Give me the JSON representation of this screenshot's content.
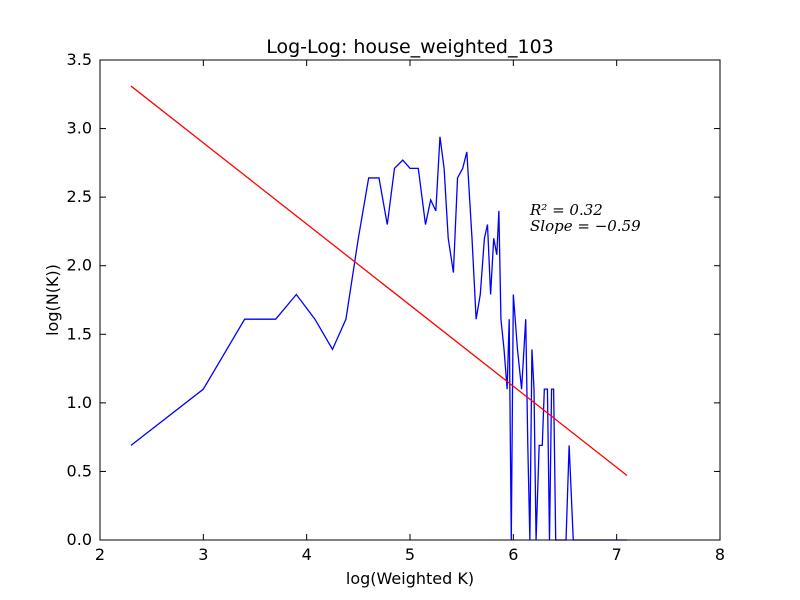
{
  "chart_data": {
    "type": "line",
    "title": "Log-Log: house_weighted_103",
    "xlabel": "log(Weighted K)",
    "ylabel": "log(N(K))",
    "xlim": [
      2,
      8
    ],
    "ylim": [
      0.0,
      3.5
    ],
    "xticks": [
      "2",
      "3",
      "4",
      "5",
      "6",
      "7",
      "8"
    ],
    "yticks": [
      "0.0",
      "0.5",
      "1.0",
      "1.5",
      "2.0",
      "2.5",
      "3.0",
      "3.5"
    ],
    "grid": false,
    "series": [
      {
        "color": "#0000ff",
        "x": [
          2.3,
          3.0,
          3.4,
          3.7,
          3.9,
          4.08,
          4.25,
          4.38,
          4.5,
          4.6,
          4.7,
          4.78,
          4.85,
          4.93,
          5.0,
          5.08,
          5.15,
          5.2,
          5.25,
          5.29,
          5.33,
          5.37,
          5.42,
          5.46,
          5.51,
          5.55,
          5.6,
          5.64,
          5.68,
          5.72,
          5.75,
          5.78,
          5.81,
          5.84,
          5.86,
          5.88,
          5.91,
          5.94,
          5.96,
          5.98,
          6.0,
          6.04,
          6.08,
          6.12,
          6.14,
          6.16,
          6.18,
          6.2,
          6.22,
          6.25,
          6.28,
          6.3,
          6.33,
          6.35,
          6.37,
          6.39,
          6.41,
          6.43,
          6.45,
          6.48,
          6.51,
          6.54,
          6.58,
          6.65,
          6.8,
          7.1
        ],
        "y": [
          0.69,
          1.1,
          1.61,
          1.61,
          1.79,
          1.61,
          1.39,
          1.61,
          2.2,
          2.64,
          2.64,
          2.3,
          2.71,
          2.77,
          2.71,
          2.71,
          2.3,
          2.48,
          2.4,
          2.94,
          2.71,
          2.2,
          1.95,
          2.64,
          2.71,
          2.83,
          2.2,
          1.61,
          1.79,
          2.2,
          2.3,
          1.79,
          2.2,
          2.08,
          2.4,
          1.61,
          1.39,
          1.1,
          1.61,
          0.0,
          1.79,
          1.39,
          1.1,
          1.61,
          0.69,
          0.0,
          1.39,
          1.1,
          0.0,
          0.69,
          0.69,
          1.1,
          1.1,
          0.0,
          1.1,
          1.1,
          0.0,
          0.0,
          0.0,
          0.0,
          0.0,
          0.69,
          0.0,
          0.0,
          0.0,
          0.0
        ]
      },
      {
        "color": "#ff0000",
        "x": [
          2.3,
          7.1
        ],
        "y": [
          3.31,
          0.47
        ]
      }
    ],
    "annotations": {
      "r2_text": "R² = 0.32",
      "slope_text": "Slope = −0.59"
    }
  }
}
